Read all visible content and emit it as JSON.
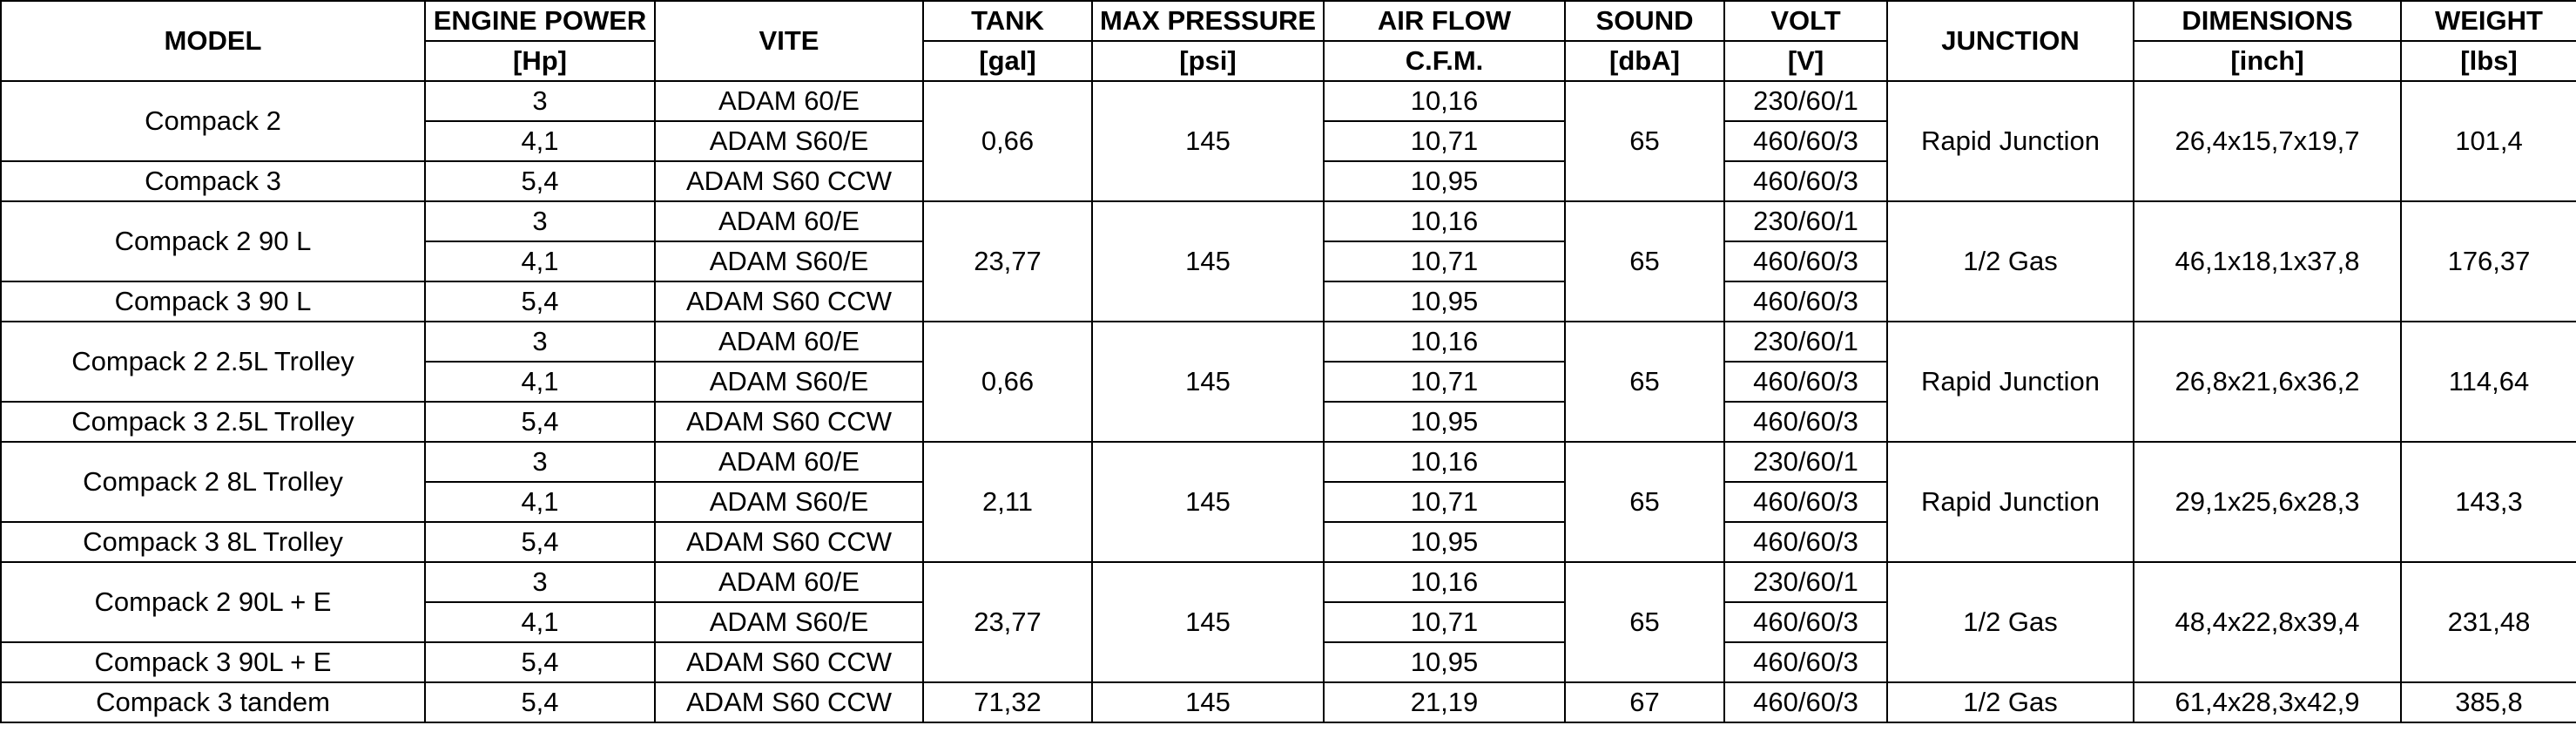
{
  "header": {
    "model": "MODEL",
    "engine_power": "ENGINE POWER",
    "engine_power_unit": "[Hp]",
    "vite": "VITE",
    "tank": "TANK",
    "tank_unit": "[gal]",
    "max_pressure": "MAX PRESSURE",
    "max_pressure_unit": "[psi]",
    "air_flow": "AIR FLOW",
    "air_flow_unit": "C.F.M.",
    "sound": "SOUND",
    "sound_unit": "[dbA]",
    "volt": "VOLT",
    "volt_unit": "[V]",
    "junction": "JUNCTION",
    "dimensions": "DIMENSIONS",
    "dimensions_unit": "[inch]",
    "weight": "WEIGHT",
    "weight_unit": "[lbs]"
  },
  "groups": [
    {
      "model_a": "Compack 2",
      "model_b": "Compack 3",
      "rows": [
        {
          "power": "3",
          "vite": "ADAM 60/E",
          "airflow": "10,16",
          "volt": "230/60/1"
        },
        {
          "power": "4,1",
          "vite": "ADAM S60/E",
          "airflow": "10,71",
          "volt": "460/60/3"
        },
        {
          "power": "5,4",
          "vite": "ADAM S60 CCW",
          "airflow": "10,95",
          "volt": "460/60/3"
        }
      ],
      "tank": "0,66",
      "pressure": "145",
      "sound": "65",
      "junction": "Rapid Junction",
      "dimensions": "26,4x15,7x19,7",
      "weight": "101,4"
    },
    {
      "model_a": "Compack 2 90 L",
      "model_b": "Compack 3 90 L",
      "rows": [
        {
          "power": "3",
          "vite": "ADAM 60/E",
          "airflow": "10,16",
          "volt": "230/60/1"
        },
        {
          "power": "4,1",
          "vite": "ADAM S60/E",
          "airflow": "10,71",
          "volt": "460/60/3"
        },
        {
          "power": "5,4",
          "vite": "ADAM S60 CCW",
          "airflow": "10,95",
          "volt": "460/60/3"
        }
      ],
      "tank": "23,77",
      "pressure": "145",
      "sound": "65",
      "junction": "1/2 Gas",
      "dimensions": "46,1x18,1x37,8",
      "weight": "176,37"
    },
    {
      "model_a": "Compack 2 2.5L Trolley",
      "model_b": "Compack 3 2.5L Trolley",
      "rows": [
        {
          "power": "3",
          "vite": "ADAM 60/E",
          "airflow": "10,16",
          "volt": "230/60/1"
        },
        {
          "power": "4,1",
          "vite": "ADAM S60/E",
          "airflow": "10,71",
          "volt": "460/60/3"
        },
        {
          "power": "5,4",
          "vite": "ADAM S60 CCW",
          "airflow": "10,95",
          "volt": "460/60/3"
        }
      ],
      "tank": "0,66",
      "pressure": "145",
      "sound": "65",
      "junction": "Rapid Junction",
      "dimensions": "26,8x21,6x36,2",
      "weight": "114,64"
    },
    {
      "model_a": "Compack 2 8L Trolley",
      "model_b": "Compack 3 8L Trolley",
      "rows": [
        {
          "power": "3",
          "vite": "ADAM 60/E",
          "airflow": "10,16",
          "volt": "230/60/1"
        },
        {
          "power": "4,1",
          "vite": "ADAM S60/E",
          "airflow": "10,71",
          "volt": "460/60/3"
        },
        {
          "power": "5,4",
          "vite": "ADAM S60 CCW",
          "airflow": "10,95",
          "volt": "460/60/3"
        }
      ],
      "tank": "2,11",
      "pressure": "145",
      "sound": "65",
      "junction": "Rapid Junction",
      "dimensions": "29,1x25,6x28,3",
      "weight": "143,3"
    },
    {
      "model_a": "Compack 2 90L + E",
      "model_b": "Compack 3 90L + E",
      "rows": [
        {
          "power": "3",
          "vite": "ADAM 60/E",
          "airflow": "10,16",
          "volt": "230/60/1"
        },
        {
          "power": "4,1",
          "vite": "ADAM S60/E",
          "airflow": "10,71",
          "volt": "460/60/3"
        },
        {
          "power": "5,4",
          "vite": "ADAM S60 CCW",
          "airflow": "10,95",
          "volt": "460/60/3"
        }
      ],
      "tank": "23,77",
      "pressure": "145",
      "sound": "65",
      "junction": "1/2 Gas",
      "dimensions": "48,4x22,8x39,4",
      "weight": "231,48"
    }
  ],
  "last_row": {
    "model": "Compack 3 tandem",
    "power": "5,4",
    "vite": "ADAM S60 CCW",
    "tank": "71,32",
    "pressure": "145",
    "airflow": "21,19",
    "sound": "67",
    "volt": "460/60/3",
    "junction": "1/2 Gas",
    "dimensions": "61,4x28,3x42,9",
    "weight": "385,8"
  }
}
